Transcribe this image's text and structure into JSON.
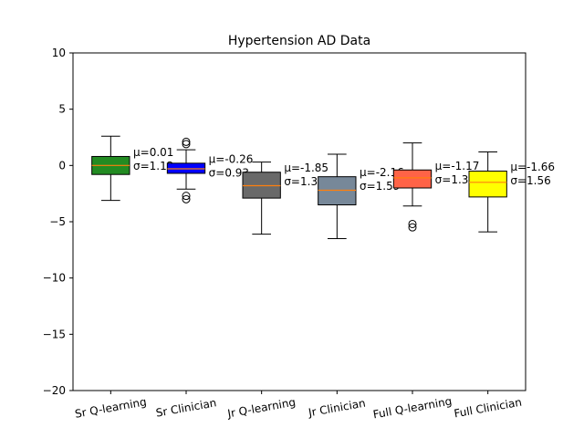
{
  "chart_data": {
    "type": "box",
    "title": "Hypertension AD Data",
    "xlabel": "",
    "ylabel": "",
    "ylim": [
      -20,
      10
    ],
    "yticks": [
      10,
      5,
      0,
      -5,
      -10,
      -15,
      -20
    ],
    "ytick_labels": [
      "10",
      "5",
      "0",
      "−5",
      "−10",
      "−15",
      "−20"
    ],
    "categories": [
      "Sr Q-learning",
      "Sr Clinician",
      "Jr Q-learning",
      "Jr Clinician",
      "Full Q-learning",
      "Full Clinician"
    ],
    "boxes": [
      {
        "name": "Sr Q-learning",
        "color": "#228b22",
        "whisker_low": -3.1,
        "q1": -0.8,
        "median": 0.0,
        "q3": 0.8,
        "whisker_high": 2.6,
        "outliers": [],
        "mean_label": "μ=0.01",
        "std_label": "σ=1.12"
      },
      {
        "name": "Sr Clinician",
        "color": "#0000ff",
        "whisker_low": -2.1,
        "q1": -0.7,
        "median": -0.3,
        "q3": 0.2,
        "whisker_high": 1.4,
        "outliers": [
          2.1,
          1.9,
          -2.7,
          -3.0
        ],
        "mean_label": "μ=-0.26",
        "std_label": "σ=0.93"
      },
      {
        "name": "Jr Q-learning",
        "color": "#696969",
        "whisker_low": -6.1,
        "q1": -2.9,
        "median": -1.8,
        "q3": -0.6,
        "whisker_high": 0.3,
        "outliers": [],
        "mean_label": "μ=-1.85",
        "std_label": "σ=1.35"
      },
      {
        "name": "Jr Clinician",
        "color": "#778899",
        "whisker_low": -6.5,
        "q1": -3.5,
        "median": -2.2,
        "q3": -1.0,
        "whisker_high": 1.0,
        "outliers": [],
        "mean_label": "μ=-2.16",
        "std_label": "σ=1.59"
      },
      {
        "name": "Full Q-learning",
        "color": "#ff6347",
        "whisker_low": -3.6,
        "q1": -2.0,
        "median": -1.1,
        "q3": -0.4,
        "whisker_high": 2.0,
        "outliers": [
          -5.2,
          -5.5
        ],
        "mean_label": "μ=-1.17",
        "std_label": "σ=1.32"
      },
      {
        "name": "Full Clinician",
        "color": "#ffff00",
        "whisker_low": -5.9,
        "q1": -2.8,
        "median": -1.5,
        "q3": -0.5,
        "whisker_high": 1.2,
        "outliers": [],
        "mean_label": "μ=-1.66",
        "std_label": "σ=1.56"
      }
    ],
    "median_color": "#ff7f0e"
  }
}
